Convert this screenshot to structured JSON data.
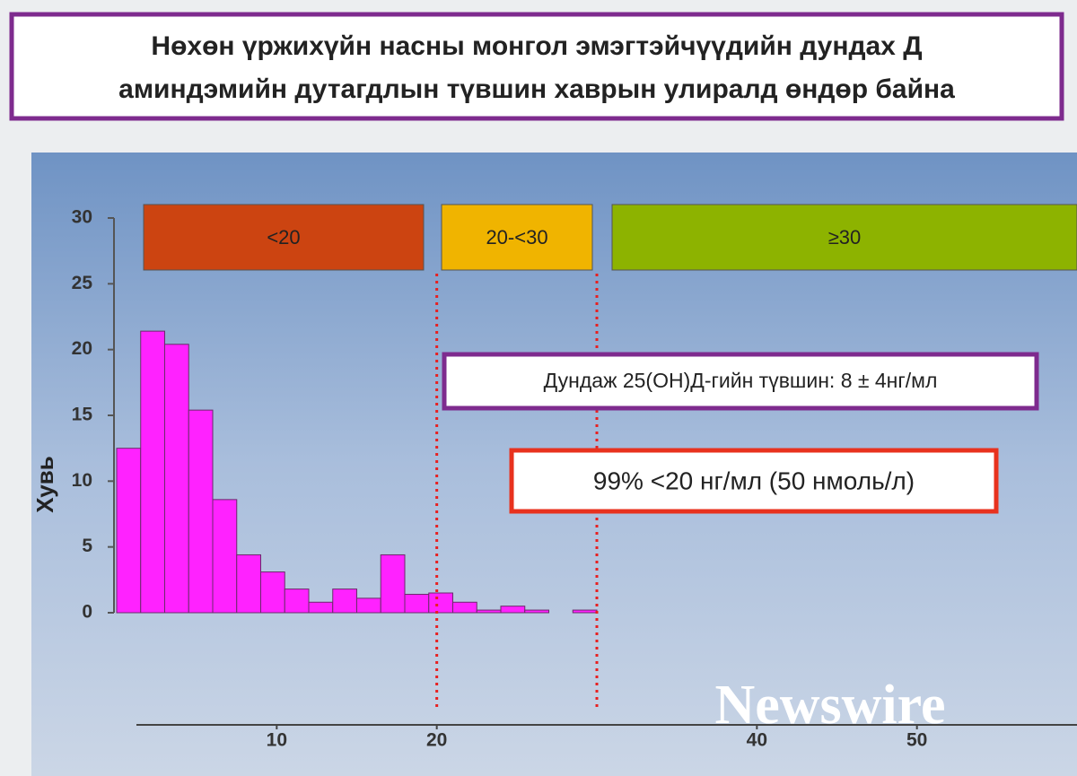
{
  "slide": {
    "title": [
      "Нөхөн үржихүйн насны монгол эмэгтэйчүүдийн  дундах Д",
      "аминдэмийн дутагдлын түвшин хаврын улиралд өндөр байна"
    ]
  },
  "chart_data": {
    "type": "histogram",
    "y_label": "Хувь",
    "bins": [
      0,
      1.5,
      3,
      4.5,
      6,
      7.5,
      9,
      10.5,
      12,
      13.5,
      15,
      16.5,
      18,
      19.5,
      21,
      22.5,
      24,
      25.5,
      27,
      28.5,
      30
    ],
    "values": [
      12.5,
      21.4,
      20.4,
      15.4,
      8.6,
      4.4,
      3.1,
      1.8,
      0.8,
      1.8,
      1.1,
      4.4,
      1.4,
      1.5,
      0.8,
      0.2,
      0.5,
      0.2,
      0,
      0.2
    ],
    "color": "#ff22ff",
    "ylim": [
      0,
      30
    ],
    "yticks": [
      0,
      5,
      10,
      15,
      20,
      25,
      30
    ],
    "xlim": [
      0,
      60
    ],
    "xticks": [
      10,
      20,
      40,
      50
    ],
    "thresholds": [
      20,
      30
    ],
    "range_labels": [
      "<20",
      "20-<30",
      "≥30"
    ],
    "range_colors": [
      "#cc4411",
      "#f0b400",
      "#8db300"
    ],
    "annotations": [
      "Дундаж 25(OH)Д-гийн түвшин:  8 ± 4нг/мл",
      "99% <20 нг/мл (50 нмоль/л)"
    ]
  },
  "watermark": "Newswire"
}
